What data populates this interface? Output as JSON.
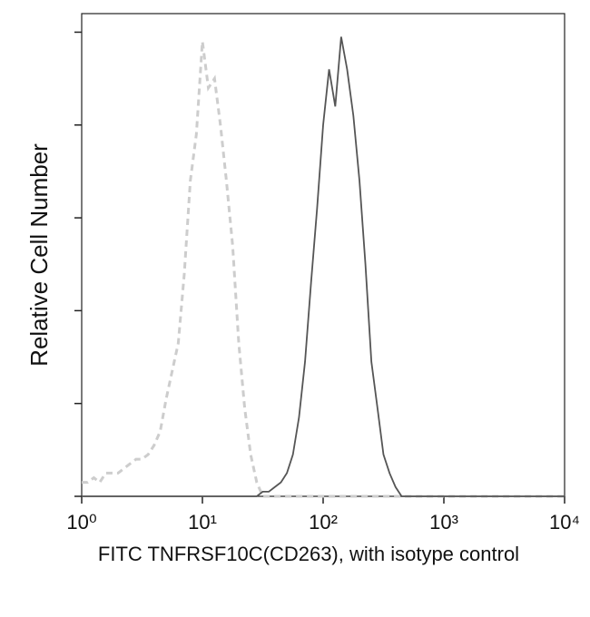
{
  "chart_data": {
    "type": "line",
    "xlabel": "FITC TNFRSF10C(CD263), with isotype control",
    "ylabel": "Relative Cell Number",
    "xscale": "log",
    "x": [
      1,
      1.12,
      1.26,
      1.41,
      1.58,
      1.78,
      2,
      2.24,
      2.51,
      2.82,
      3.16,
      3.55,
      3.98,
      4.47,
      5.01,
      5.62,
      6.31,
      7.08,
      7.94,
      8.91,
      10,
      11.2,
      12.6,
      14.1,
      15.8,
      17.8,
      20,
      22.4,
      25.1,
      28.2,
      31.6,
      35.5,
      39.8,
      44.7,
      50.1,
      56.2,
      63.1,
      70.8,
      79.4,
      89.1,
      100,
      112,
      126,
      141,
      158,
      178,
      200,
      224,
      251,
      282,
      316,
      355,
      398,
      447,
      501,
      562,
      631,
      708,
      794,
      891,
      1000,
      1780,
      3160,
      5620,
      10000
    ],
    "series": [
      {
        "color": "#cdcdcd",
        "linestyle": "dashed",
        "values": [
          3,
          3,
          4,
          3,
          5,
          5,
          5,
          6,
          7,
          8,
          8,
          9,
          11,
          14,
          21,
          27,
          33,
          48,
          68,
          78,
          98,
          88,
          90,
          80,
          68,
          54,
          33,
          19,
          9,
          3,
          0,
          0,
          0,
          0,
          0,
          0,
          0,
          0,
          0,
          0,
          0,
          0,
          0,
          0,
          0,
          0,
          0,
          0,
          0,
          0,
          0,
          0,
          0,
          0,
          0,
          0,
          0,
          0,
          0,
          0,
          0,
          0,
          0,
          0,
          0
        ]
      },
      {
        "color": "#555555",
        "linestyle": "solid",
        "values": [
          0,
          0,
          0,
          0,
          0,
          0,
          0,
          0,
          0,
          0,
          0,
          0,
          0,
          0,
          0,
          0,
          0,
          0,
          0,
          0,
          0,
          0,
          0,
          0,
          0,
          0,
          0,
          0,
          0,
          0,
          1,
          1,
          2,
          3,
          5,
          9,
          17,
          29,
          46,
          62,
          80,
          92,
          84,
          99,
          92,
          82,
          68,
          50,
          29,
          19,
          9,
          5,
          2,
          0,
          0,
          0,
          0,
          0,
          0,
          0,
          0,
          0,
          0,
          0,
          0
        ]
      }
    ],
    "xlim": [
      1,
      10000
    ],
    "xticks": [
      {
        "value": 1,
        "label": "10⁰"
      },
      {
        "value": 10,
        "label": "10¹"
      },
      {
        "value": 100,
        "label": "10²"
      },
      {
        "value": 1000,
        "label": "10³"
      },
      {
        "value": 10000,
        "label": "10⁴"
      }
    ],
    "ylim": [
      0,
      104
    ],
    "yticks": [
      0,
      20,
      40,
      60,
      80,
      100
    ]
  }
}
